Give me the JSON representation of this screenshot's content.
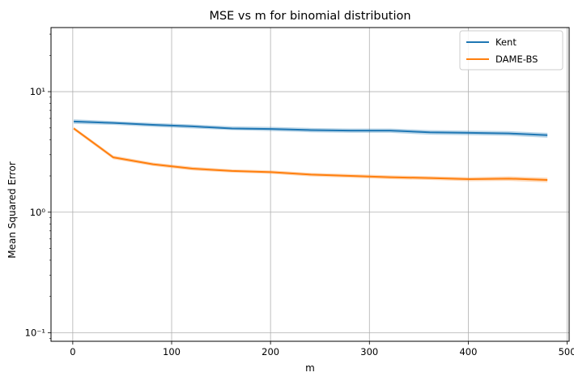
{
  "chart_data": {
    "type": "line",
    "title": "MSE vs m for binomial distribution",
    "xlabel": "m",
    "ylabel": "Mean Squared Error",
    "xlim": [
      -22,
      502
    ],
    "ylim": [
      0.085,
      34
    ],
    "yscale": "log",
    "grid": true,
    "legend_position": "top-right",
    "x_ticks": [
      0,
      100,
      200,
      300,
      400,
      500
    ],
    "x_tick_labels": [
      "0",
      "100",
      "200",
      "300",
      "400",
      "500"
    ],
    "y_ticks": [
      0.1,
      1,
      10
    ],
    "y_tick_labels": [
      "10⁻¹",
      "10⁰",
      "10¹"
    ],
    "x": [
      1,
      41,
      81,
      121,
      161,
      201,
      241,
      281,
      321,
      361,
      401,
      441,
      480
    ],
    "series": [
      {
        "name": "Kent",
        "color": "#1f77b4",
        "values": [
          5.65,
          5.5,
          5.3,
          5.15,
          4.95,
          4.9,
          4.8,
          4.75,
          4.75,
          4.6,
          4.55,
          4.5,
          4.35
        ],
        "lower": [
          5.4,
          5.3,
          5.1,
          4.95,
          4.8,
          4.7,
          4.6,
          4.55,
          4.55,
          4.4,
          4.35,
          4.3,
          4.15
        ],
        "upper": [
          5.9,
          5.7,
          5.5,
          5.35,
          5.15,
          5.1,
          5.0,
          4.95,
          4.95,
          4.8,
          4.75,
          4.7,
          4.55
        ]
      },
      {
        "name": "DAME-BS",
        "color": "#ff7f0e",
        "values": [
          4.95,
          2.85,
          2.5,
          2.3,
          2.2,
          2.15,
          2.05,
          2.0,
          1.95,
          1.92,
          1.88,
          1.9,
          1.85
        ],
        "lower": [
          4.8,
          2.75,
          2.42,
          2.22,
          2.13,
          2.08,
          1.98,
          1.93,
          1.88,
          1.85,
          1.81,
          1.82,
          1.77
        ],
        "upper": [
          5.1,
          2.95,
          2.58,
          2.38,
          2.27,
          2.22,
          2.12,
          2.07,
          2.02,
          1.99,
          1.95,
          1.98,
          1.93
        ]
      }
    ]
  }
}
